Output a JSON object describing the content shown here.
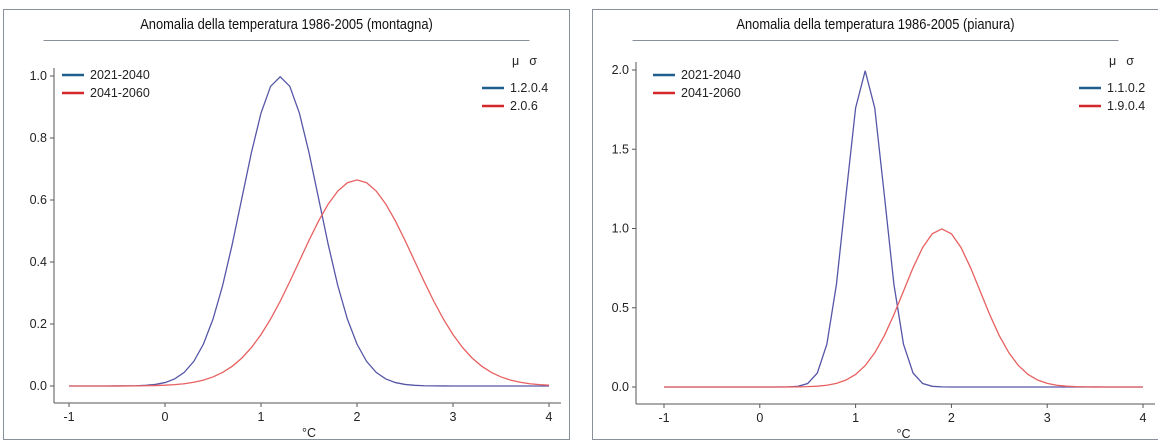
{
  "chart_data": [
    {
      "type": "line",
      "title": "Anomalia della temperatura 1986-2005 (montagna)",
      "xlabel": "°C",
      "ylabel": "",
      "xlim": [
        -1,
        4
      ],
      "ylim": [
        0,
        1.0
      ],
      "xticks": [
        "-1",
        "0",
        "1",
        "2",
        "3",
        "4"
      ],
      "yticks": [
        "0.0",
        "0.2",
        "0.4",
        "0.6",
        "0.8",
        "1.0"
      ],
      "legend_header": [
        "μ",
        "σ"
      ],
      "series": [
        {
          "name": "2021-2040",
          "params": "1.2.0.4",
          "mu": 1.2,
          "sigma": 0.4,
          "color": "#5656a8",
          "legend_color": "#1f5f8b"
        },
        {
          "name": "2041-2060",
          "params": "2.0.6",
          "mu": 2.0,
          "sigma": 0.6,
          "color": "#e86060",
          "legend_color": "#d4282c"
        }
      ]
    },
    {
      "type": "line",
      "title": "Anomalia della temperatura 1986-2005 (pianura)",
      "xlabel": "°C",
      "ylabel": "",
      "xlim": [
        -1,
        4
      ],
      "ylim": [
        0,
        2.0
      ],
      "xticks": [
        "-1",
        "0",
        "1",
        "2",
        "3",
        "4"
      ],
      "yticks": [
        "0.0",
        "0.5",
        "1.0",
        "1.5",
        "2.0"
      ],
      "legend_header": [
        "μ",
        "σ"
      ],
      "series": [
        {
          "name": "2021-2040",
          "params": "1.1.0.2",
          "mu": 1.1,
          "sigma": 0.2,
          "color": "#5656a8",
          "legend_color": "#1f5f8b"
        },
        {
          "name": "2041-2060",
          "params": "1.9.0.4",
          "mu": 1.9,
          "sigma": 0.4,
          "color": "#e86060",
          "legend_color": "#d4282c"
        }
      ]
    }
  ]
}
